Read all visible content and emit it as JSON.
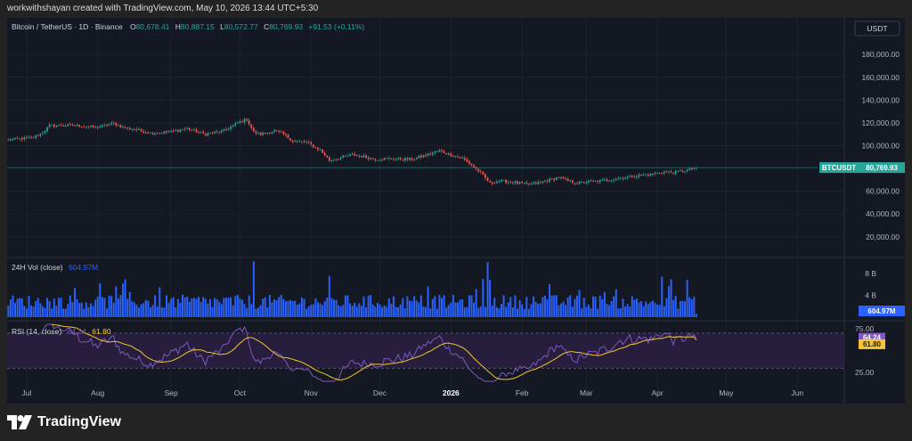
{
  "header": {
    "text": "workwithshayan created with TradingView.com, May 10, 2026 13:44 UTC+5:30"
  },
  "footer": {
    "brand": "TradingView"
  },
  "chart_data": {
    "type": "candlestick",
    "symbol_line": {
      "name": "Bitcoin / TetherUS · 1D · Binance",
      "o_label": "O",
      "o": "80,678.41",
      "h_label": "H",
      "h": "80,887.15",
      "l_label": "L",
      "l": "80,572.77",
      "c_label": "C",
      "c": "80,769.93",
      "change": "+91.53 (+0.11%)"
    },
    "currency": "USDT",
    "price_axis": {
      "ticks": [
        "180,000.00",
        "160,000.00",
        "140,000.00",
        "120,000.00",
        "100,000.00",
        "60,000.00",
        "40,000.00",
        "20,000.00"
      ],
      "tick_values": [
        180000,
        160000,
        140000,
        120000,
        100000,
        60000,
        40000,
        20000
      ],
      "range": [
        5000,
        195000
      ]
    },
    "last_price": {
      "symbol": "BTCUSDT",
      "value": "80,769.93",
      "numeric": 80769.93,
      "color": "#26a69a"
    },
    "x_axis": {
      "labels": [
        "Jul",
        "Aug",
        "Sep",
        "Oct",
        "Nov",
        "Dec",
        "2026",
        "Feb",
        "Mar",
        "Apr",
        "May",
        "Jun"
      ],
      "label_day_index": [
        8,
        39,
        71,
        101,
        132,
        162,
        193,
        224,
        252,
        283,
        313,
        344
      ],
      "total_days": 365
    },
    "price_anchors": [
      [
        0,
        105000
      ],
      [
        10,
        107000
      ],
      [
        14,
        110000
      ],
      [
        18,
        117500
      ],
      [
        28,
        118000
      ],
      [
        38,
        116000
      ],
      [
        46,
        119500
      ],
      [
        50,
        116000
      ],
      [
        56,
        114000
      ],
      [
        62,
        111000
      ],
      [
        70,
        112000
      ],
      [
        78,
        115000
      ],
      [
        86,
        110000
      ],
      [
        94,
        113000
      ],
      [
        100,
        120000
      ],
      [
        104,
        123000
      ],
      [
        107,
        112000
      ],
      [
        110,
        110000
      ],
      [
        116,
        113000
      ],
      [
        120,
        110000
      ],
      [
        124,
        104000
      ],
      [
        130,
        103000
      ],
      [
        136,
        96000
      ],
      [
        140,
        87000
      ],
      [
        146,
        90000
      ],
      [
        150,
        92000
      ],
      [
        156,
        90000
      ],
      [
        160,
        88000
      ],
      [
        166,
        88500
      ],
      [
        176,
        88000
      ],
      [
        184,
        93000
      ],
      [
        188,
        95500
      ],
      [
        192,
        92500
      ],
      [
        198,
        89000
      ],
      [
        202,
        83000
      ],
      [
        206,
        76000
      ],
      [
        210,
        67000
      ],
      [
        214,
        69000
      ],
      [
        220,
        68000
      ],
      [
        226,
        66000
      ],
      [
        232,
        67500
      ],
      [
        236,
        70000
      ],
      [
        240,
        72000
      ],
      [
        244,
        69000
      ],
      [
        248,
        67000
      ],
      [
        252,
        68000
      ],
      [
        256,
        68500
      ],
      [
        262,
        70000
      ],
      [
        268,
        72000
      ],
      [
        274,
        73500
      ],
      [
        280,
        74500
      ],
      [
        285,
        77000
      ],
      [
        290,
        76500
      ],
      [
        296,
        78500
      ],
      [
        300,
        80769.93
      ]
    ],
    "volume": {
      "label": "24H Vol (close)",
      "value": "604.97M",
      "ticks": [
        "8 B",
        "4 B"
      ],
      "tick_values": [
        8,
        4
      ],
      "unit": "B"
    },
    "rsi": {
      "label": "RSI (14, close)",
      "value": "64.24",
      "ma_value": "61.80",
      "ticks": [
        "75.00",
        "25.00"
      ],
      "tick_values": [
        75,
        25
      ],
      "band": [
        70,
        30
      ],
      "range": [
        15,
        80
      ],
      "colors": {
        "rsi": "#7e57c2",
        "ma": "#f5c430",
        "band_fill": "#261e3c"
      }
    },
    "colors": {
      "up": "#26a69a",
      "down": "#ef5350",
      "volume": "#2962ff"
    },
    "grid": true
  }
}
